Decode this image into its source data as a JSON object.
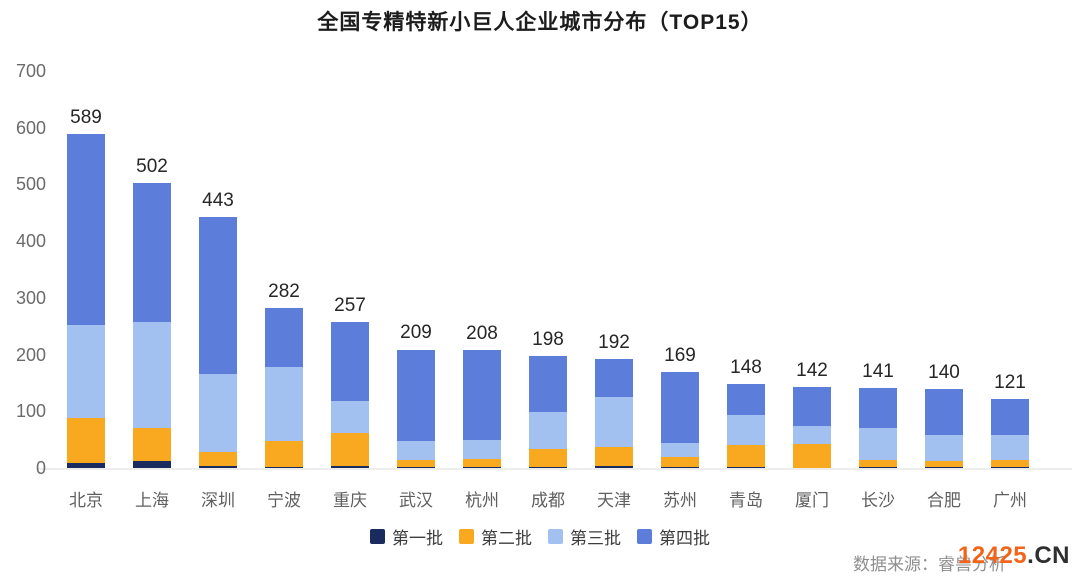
{
  "title": "全国专精特新小巨人企业城市分布（TOP15）",
  "source": {
    "label": "数据来源：睿兽分析",
    "watermark_main": "12425",
    "watermark_suffix": ".CN",
    "watermark_main_color": "#F2641A",
    "watermark_suffix_color": "#2f2f2f"
  },
  "chart_data": {
    "type": "bar",
    "stacked": true,
    "title": "全国专精特新小巨人企业城市分布（TOP15）",
    "xlabel": "",
    "ylabel": "",
    "ylim": [
      0,
      700
    ],
    "yticks": [
      700,
      600,
      500,
      400,
      300,
      200,
      100,
      0
    ],
    "grid": false,
    "legend_position": "bottom",
    "categories": [
      "北京",
      "上海",
      "深圳",
      "宁波",
      "重庆",
      "武汉",
      "杭州",
      "成都",
      "天津",
      "苏州",
      "青岛",
      "厦门",
      "长沙",
      "合肥",
      "广州"
    ],
    "totals": [
      589,
      502,
      443,
      282,
      257,
      209,
      208,
      198,
      192,
      169,
      148,
      142,
      141,
      140,
      121
    ],
    "series": [
      {
        "name": "第一批",
        "color": "#1A2C5E",
        "values": [
          8,
          13,
          4,
          2,
          4,
          2,
          2,
          2,
          4,
          2,
          2,
          0,
          2,
          2,
          2
        ]
      },
      {
        "name": "第二批",
        "color": "#F8A91F",
        "values": [
          80,
          57,
          24,
          46,
          57,
          12,
          14,
          31,
          33,
          17,
          39,
          42,
          12,
          10,
          12
        ]
      },
      {
        "name": "第三批",
        "color": "#A2C0F0",
        "values": [
          165,
          187,
          137,
          131,
          57,
          33,
          33,
          66,
          89,
          26,
          52,
          32,
          56,
          46,
          45
        ]
      },
      {
        "name": "第四批",
        "color": "#5C7EDA",
        "values": [
          336,
          245,
          278,
          103,
          139,
          162,
          159,
          99,
          66,
          124,
          55,
          68,
          71,
          82,
          62
        ]
      }
    ]
  }
}
